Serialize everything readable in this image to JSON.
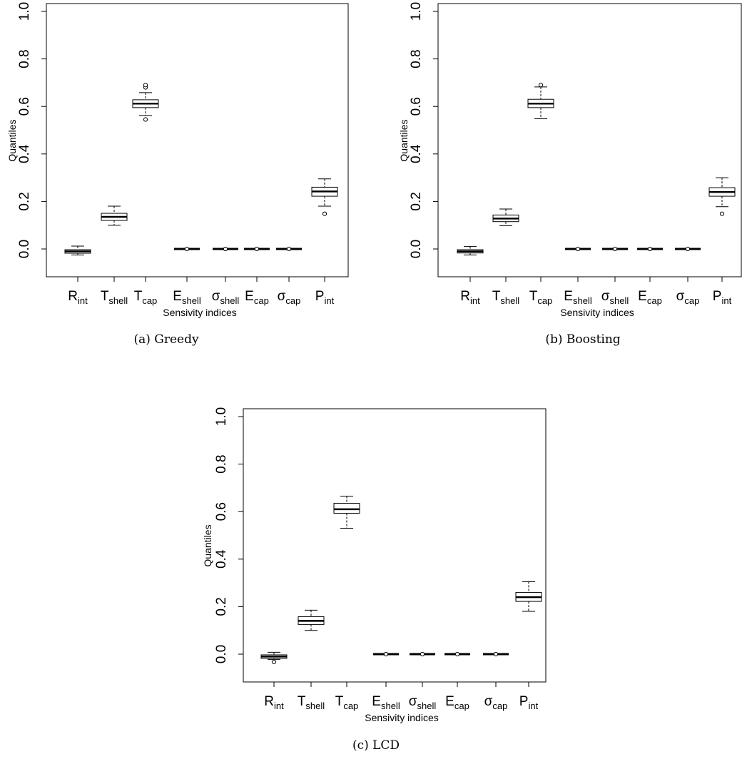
{
  "figure": {
    "panels": [
      {
        "caption": "(a)  Greedy",
        "xlabel": "Sensivity indices",
        "ylabel": "Quantiles"
      },
      {
        "caption": "(b)  Boosting",
        "xlabel": "Sensivity indices",
        "ylabel": "Quantiles"
      },
      {
        "caption": "(c)  LCD",
        "xlabel": "Sensivity indices",
        "ylabel": "Quantiles"
      }
    ]
  },
  "chart_data": [
    {
      "type": "boxplot",
      "title": "",
      "caption": "(a)  Greedy",
      "xlabel": "Sensivity indices",
      "ylabel": "Quantiles",
      "ylim": [
        -0.13,
        1.0
      ],
      "yticks": [
        "0.0",
        "0.2",
        "0.4",
        "0.6",
        "0.8",
        "1.0"
      ],
      "categories": [
        {
          "base": "R",
          "sub": "int"
        },
        {
          "base": "T",
          "sub": "shell"
        },
        {
          "base": "T",
          "sub": "cap"
        },
        {
          "base": "E",
          "sub": "shell"
        },
        {
          "base": "σ",
          "sub": "shell"
        },
        {
          "base": "E",
          "sub": "cap"
        },
        {
          "base": "σ",
          "sub": "cap"
        },
        {
          "base": "P",
          "sub": "int"
        }
      ],
      "boxes": [
        {
          "min": -0.025,
          "q1": -0.018,
          "median": -0.01,
          "q3": -0.003,
          "max": 0.012,
          "outliers": []
        },
        {
          "min": 0.1,
          "q1": 0.12,
          "median": 0.135,
          "q3": 0.15,
          "max": 0.18,
          "outliers": []
        },
        {
          "min": 0.562,
          "q1": 0.595,
          "median": 0.612,
          "q3": 0.628,
          "max": 0.658,
          "outliers": [
            0.545,
            0.68,
            0.69
          ]
        },
        {
          "min": 0.0,
          "q1": 0.0,
          "median": 0.0,
          "q3": 0.0,
          "max": 0.0,
          "outliers": [
            0.0
          ]
        },
        {
          "min": 0.0,
          "q1": 0.0,
          "median": 0.0,
          "q3": 0.0,
          "max": 0.0,
          "outliers": [
            0.0
          ]
        },
        {
          "min": 0.0,
          "q1": 0.0,
          "median": 0.0,
          "q3": 0.0,
          "max": 0.0,
          "outliers": [
            0.0
          ]
        },
        {
          "min": 0.0,
          "q1": 0.0,
          "median": 0.0,
          "q3": 0.0,
          "max": 0.0,
          "outliers": [
            0.0
          ]
        },
        {
          "min": 0.18,
          "q1": 0.222,
          "median": 0.242,
          "q3": 0.26,
          "max": 0.295,
          "outliers": [
            0.148
          ]
        }
      ]
    },
    {
      "type": "boxplot",
      "title": "",
      "caption": "(b)  Boosting",
      "xlabel": "Sensivity indices",
      "ylabel": "Quantiles",
      "ylim": [
        -0.13,
        1.0
      ],
      "yticks": [
        "0.0",
        "0.2",
        "0.4",
        "0.6",
        "0.8",
        "1.0"
      ],
      "categories": [
        {
          "base": "R",
          "sub": "int"
        },
        {
          "base": "T",
          "sub": "shell"
        },
        {
          "base": "T",
          "sub": "cap"
        },
        {
          "base": "E",
          "sub": "shell"
        },
        {
          "base": "σ",
          "sub": "shell"
        },
        {
          "base": "E",
          "sub": "cap"
        },
        {
          "base": "σ",
          "sub": "cap"
        },
        {
          "base": "P",
          "sub": "int"
        }
      ],
      "boxes": [
        {
          "min": -0.025,
          "q1": -0.017,
          "median": -0.01,
          "q3": -0.003,
          "max": 0.01,
          "outliers": []
        },
        {
          "min": 0.098,
          "q1": 0.115,
          "median": 0.128,
          "q3": 0.143,
          "max": 0.168,
          "outliers": []
        },
        {
          "min": 0.548,
          "q1": 0.595,
          "median": 0.612,
          "q3": 0.63,
          "max": 0.682,
          "outliers": [
            0.69
          ]
        },
        {
          "min": 0.0,
          "q1": 0.0,
          "median": 0.0,
          "q3": 0.0,
          "max": 0.0,
          "outliers": [
            0.0
          ]
        },
        {
          "min": 0.0,
          "q1": 0.0,
          "median": 0.0,
          "q3": 0.0,
          "max": 0.0,
          "outliers": [
            0.0
          ]
        },
        {
          "min": 0.0,
          "q1": 0.0,
          "median": 0.0,
          "q3": 0.0,
          "max": 0.0,
          "outliers": [
            0.0
          ]
        },
        {
          "min": 0.0,
          "q1": 0.0,
          "median": 0.0,
          "q3": 0.0,
          "max": 0.0,
          "outliers": [
            0.0
          ]
        },
        {
          "min": 0.178,
          "q1": 0.222,
          "median": 0.24,
          "q3": 0.258,
          "max": 0.3,
          "outliers": [
            0.148
          ]
        }
      ]
    },
    {
      "type": "boxplot",
      "title": "",
      "caption": "(c)  LCD",
      "xlabel": "Sensivity indices",
      "ylabel": "Quantiles",
      "ylim": [
        -0.13,
        1.0
      ],
      "yticks": [
        "0.0",
        "0.2",
        "0.4",
        "0.6",
        "0.8",
        "1.0"
      ],
      "categories": [
        {
          "base": "R",
          "sub": "int"
        },
        {
          "base": "T",
          "sub": "shell"
        },
        {
          "base": "T",
          "sub": "cap"
        },
        {
          "base": "E",
          "sub": "shell"
        },
        {
          "base": "σ",
          "sub": "shell"
        },
        {
          "base": "E",
          "sub": "cap"
        },
        {
          "base": "σ",
          "sub": "cap"
        },
        {
          "base": "P",
          "sub": "int"
        }
      ],
      "boxes": [
        {
          "min": -0.022,
          "q1": -0.018,
          "median": -0.01,
          "q3": -0.003,
          "max": 0.008,
          "outliers": [
            -0.033
          ]
        },
        {
          "min": 0.1,
          "q1": 0.125,
          "median": 0.14,
          "q3": 0.158,
          "max": 0.185,
          "outliers": []
        },
        {
          "min": 0.53,
          "q1": 0.593,
          "median": 0.61,
          "q3": 0.635,
          "max": 0.665,
          "outliers": []
        },
        {
          "min": 0.0,
          "q1": 0.0,
          "median": 0.0,
          "q3": 0.0,
          "max": 0.0,
          "outliers": [
            0.0
          ]
        },
        {
          "min": 0.0,
          "q1": 0.0,
          "median": 0.0,
          "q3": 0.0,
          "max": 0.0,
          "outliers": [
            0.0
          ]
        },
        {
          "min": 0.0,
          "q1": 0.0,
          "median": 0.0,
          "q3": 0.0,
          "max": 0.0,
          "outliers": [
            0.0
          ]
        },
        {
          "min": 0.0,
          "q1": 0.0,
          "median": 0.0,
          "q3": 0.0,
          "max": 0.0,
          "outliers": [
            0.0
          ]
        },
        {
          "min": 0.18,
          "q1": 0.222,
          "median": 0.24,
          "q3": 0.26,
          "max": 0.305,
          "outliers": []
        }
      ]
    }
  ]
}
